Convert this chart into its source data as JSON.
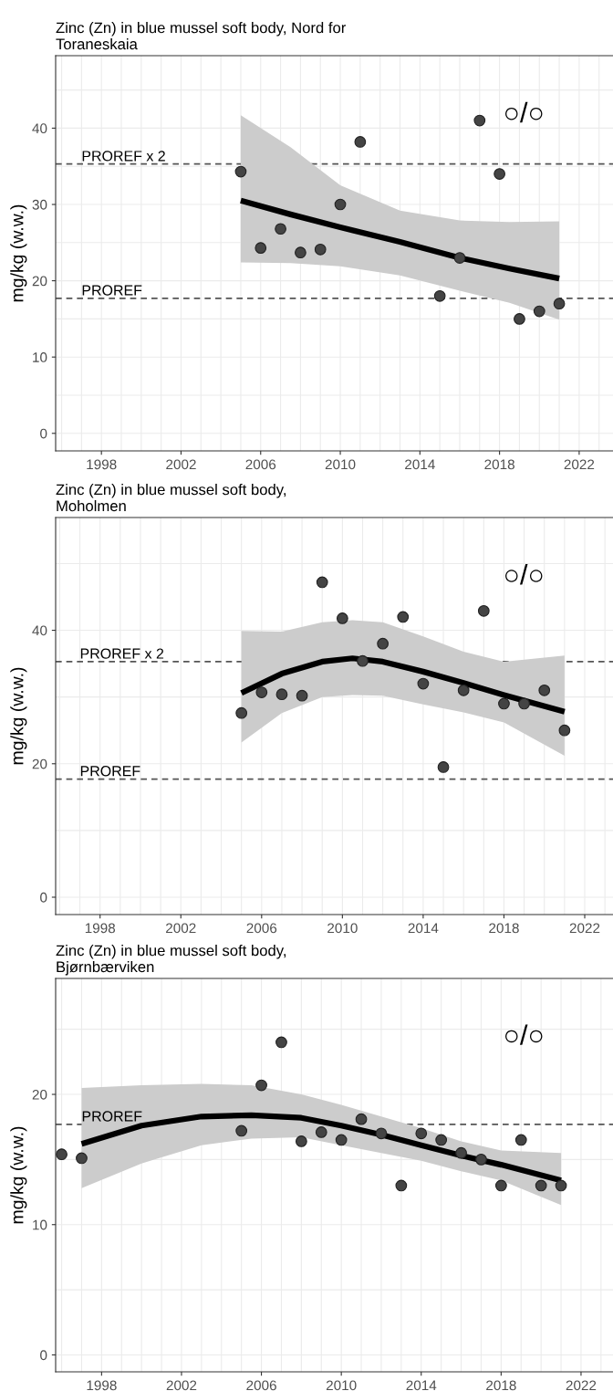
{
  "chart_data": [
    {
      "type": "scatter",
      "title": "Zinc (Zn) in blue mussel soft body, Nord for\nToraneskaia",
      "ylabel": "mg/kg (w.w.)",
      "annotations": [
        "○/○"
      ],
      "xlim": [
        1995.7,
        2023.7
      ],
      "xticks": [
        1998,
        2002,
        2006,
        2010,
        2014,
        2018,
        2022
      ],
      "ylim": [
        -2.3,
        49.5
      ],
      "yticks": [
        0,
        10,
        20,
        30,
        40
      ],
      "grid": true,
      "ref_lines": [
        {
          "axis": "y",
          "value": 35.3,
          "label": "PROREF x 2",
          "color": "#555555",
          "line_style": "dashed"
        },
        {
          "axis": "y",
          "value": 17.7,
          "label": "PROREF",
          "color": "#555555",
          "line_style": "dashed"
        }
      ],
      "series": [
        {
          "marker": "circle",
          "color": "#444444",
          "x": [
            2005,
            2006,
            2007,
            2008,
            2009,
            2010,
            2011,
            2015,
            2016,
            2017,
            2018,
            2019,
            2020,
            2021
          ],
          "values": [
            34.3,
            24.3,
            26.8,
            23.7,
            24.1,
            30.0,
            38.2,
            18.0,
            23.0,
            41.0,
            34.0,
            15.0,
            16.0,
            17.0
          ]
        },
        {
          "type": "line",
          "color": "#000000",
          "x": [
            2005,
            2007.5,
            2010,
            2013,
            2016,
            2018.5,
            2021
          ],
          "values": [
            30.5,
            28.7,
            27.0,
            25.1,
            23.0,
            21.6,
            20.3
          ],
          "lower": [
            22.4,
            22.3,
            21.9,
            20.7,
            18.7,
            17.1,
            14.9
          ],
          "upper": [
            41.7,
            37.5,
            32.5,
            29.2,
            27.9,
            27.7,
            27.8
          ]
        }
      ]
    },
    {
      "type": "scatter",
      "title": "Zinc (Zn) in blue mussel soft body,\nMoholmen",
      "ylabel": "mg/kg (w.w.)",
      "annotations": [
        "○/○"
      ],
      "xlim": [
        1995.8,
        2023.4
      ],
      "xticks": [
        1998,
        2002,
        2006,
        2010,
        2014,
        2018,
        2022
      ],
      "ylim": [
        -2.6,
        56.9
      ],
      "yticks": [
        0,
        20,
        40
      ],
      "grid": true,
      "ref_lines": [
        {
          "axis": "y",
          "value": 35.3,
          "label": "PROREF x 2",
          "color": "#555555",
          "line_style": "dashed"
        },
        {
          "axis": "y",
          "value": 17.7,
          "label": "PROREF",
          "color": "#555555",
          "line_style": "dashed"
        }
      ],
      "series": [
        {
          "marker": "circle",
          "color": "#444444",
          "x": [
            2005,
            2006,
            2007,
            2008,
            2009,
            2010,
            2011,
            2012,
            2013,
            2014,
            2015,
            2016,
            2017,
            2018,
            2019,
            2020,
            2021
          ],
          "values": [
            27.6,
            30.7,
            30.4,
            30.2,
            47.2,
            41.8,
            35.4,
            38.0,
            42.0,
            32.0,
            19.5,
            31.0,
            42.9,
            29.0,
            29.0,
            31.0,
            25.0
          ]
        },
        {
          "type": "line",
          "color": "#000000",
          "x": [
            2005,
            2007,
            2009,
            2010.5,
            2012,
            2014,
            2016,
            2018,
            2021
          ],
          "values": [
            30.6,
            33.5,
            35.3,
            35.8,
            35.3,
            33.8,
            32.1,
            30.3,
            27.8
          ],
          "lower": [
            23.2,
            27.6,
            30.0,
            30.3,
            30.2,
            28.9,
            27.7,
            26.2,
            21.2
          ],
          "upper": [
            39.9,
            39.8,
            41.2,
            41.5,
            41.2,
            39.1,
            36.8,
            35.3,
            36.2
          ]
        }
      ]
    },
    {
      "type": "scatter",
      "title": "Zinc (Zn) in blue mussel soft body,\nBjørnbærviken",
      "ylabel": "mg/kg (w.w.)",
      "annotations": [
        "○/○"
      ],
      "xlim": [
        1995.7,
        2023.6
      ],
      "xticks": [
        1998,
        2002,
        2006,
        2010,
        2014,
        2018,
        2022
      ],
      "ylim": [
        -1.3,
        28.9
      ],
      "yticks": [
        0,
        10,
        20
      ],
      "grid": true,
      "ref_lines": [
        {
          "axis": "y",
          "value": 17.7,
          "label": "PROREF",
          "color": "#555555",
          "line_style": "dashed"
        }
      ],
      "series": [
        {
          "marker": "circle",
          "color": "#444444",
          "x": [
            1996,
            1997,
            2005,
            2006,
            2007,
            2008,
            2009,
            2010,
            2011,
            2012,
            2013,
            2014,
            2015,
            2016,
            2017,
            2018,
            2019,
            2020,
            2021
          ],
          "values": [
            15.4,
            15.1,
            17.2,
            20.7,
            24.0,
            16.4,
            17.1,
            16.5,
            18.1,
            17.0,
            13.0,
            17.0,
            16.5,
            15.5,
            15.0,
            13.0,
            16.5,
            13.0,
            13.0
          ]
        },
        {
          "type": "line",
          "color": "#000000",
          "x": [
            1997,
            2000,
            2003,
            2005.5,
            2008,
            2010,
            2012,
            2014,
            2016,
            2018,
            2021
          ],
          "values": [
            16.2,
            17.6,
            18.3,
            18.4,
            18.2,
            17.6,
            16.9,
            16.1,
            15.3,
            14.6,
            13.4
          ],
          "lower": [
            12.8,
            14.7,
            16.1,
            16.6,
            16.7,
            16.1,
            15.5,
            14.9,
            14.1,
            13.4,
            11.5
          ],
          "upper": [
            20.5,
            20.7,
            20.8,
            20.7,
            20.0,
            19.2,
            18.3,
            17.4,
            16.4,
            15.7,
            15.5
          ]
        }
      ]
    }
  ]
}
